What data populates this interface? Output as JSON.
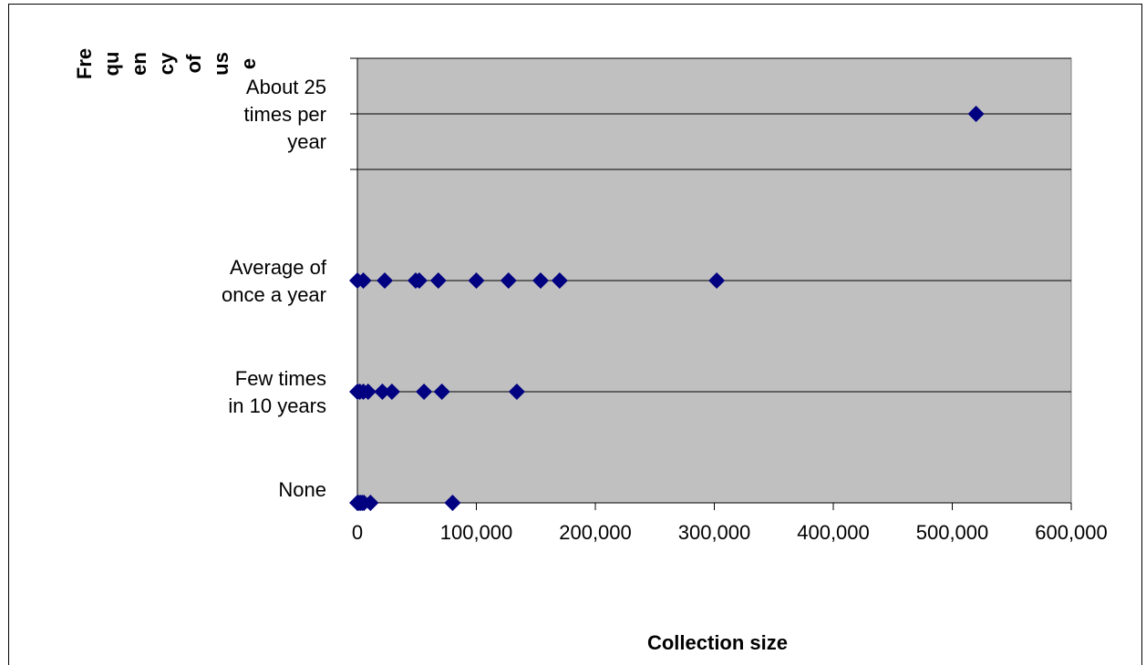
{
  "chart_data": {
    "type": "scatter",
    "xlabel": "Collection size",
    "ylabel_lines": [
      "Fre",
      "qu",
      "en",
      "cy",
      "of",
      "us",
      "e"
    ],
    "xlim": [
      0,
      600000
    ],
    "x_tick_labels": [
      "0",
      "100,000",
      "200,000",
      "300,000",
      "400,000",
      "500,000",
      "600,000"
    ],
    "x_ticks": [
      0,
      100000,
      200000,
      300000,
      400000,
      500000,
      600000
    ],
    "ylim": [
      0,
      4
    ],
    "y_levels": [
      {
        "value": 0,
        "label_lines": [
          "None"
        ]
      },
      {
        "value": 1,
        "label_lines": [
          "Few times",
          "in 10 years"
        ]
      },
      {
        "value": 2,
        "label_lines": [
          "Average of",
          "once a year"
        ]
      },
      {
        "value": 3.5,
        "label_lines": [
          "About 25",
          "times per",
          "year"
        ]
      }
    ],
    "gridlines_y": [
      1,
      2,
      3,
      3.5,
      4
    ],
    "colors": {
      "plot_background": "#c0c0c0",
      "marker": "#000080",
      "grid": "#000000"
    },
    "series": [
      {
        "marker": "diamond",
        "points": [
          {
            "x": 0,
            "y": 0
          },
          {
            "x": 1000,
            "y": 0
          },
          {
            "x": 2500,
            "y": 0
          },
          {
            "x": 4000,
            "y": 0
          },
          {
            "x": 5500,
            "y": 0
          },
          {
            "x": 11000,
            "y": 0
          },
          {
            "x": 80000,
            "y": 0
          },
          {
            "x": 0,
            "y": 1
          },
          {
            "x": 2000,
            "y": 1
          },
          {
            "x": 5000,
            "y": 1
          },
          {
            "x": 9000,
            "y": 1
          },
          {
            "x": 21000,
            "y": 1
          },
          {
            "x": 29000,
            "y": 1
          },
          {
            "x": 56000,
            "y": 1
          },
          {
            "x": 71000,
            "y": 1
          },
          {
            "x": 134000,
            "y": 1
          },
          {
            "x": 0,
            "y": 2
          },
          {
            "x": 5000,
            "y": 2
          },
          {
            "x": 23000,
            "y": 2
          },
          {
            "x": 49000,
            "y": 2
          },
          {
            "x": 52000,
            "y": 2
          },
          {
            "x": 68000,
            "y": 2
          },
          {
            "x": 100000,
            "y": 2
          },
          {
            "x": 127000,
            "y": 2
          },
          {
            "x": 154000,
            "y": 2
          },
          {
            "x": 170000,
            "y": 2
          },
          {
            "x": 302000,
            "y": 2
          },
          {
            "x": 520000,
            "y": 3.5
          }
        ]
      }
    ]
  }
}
